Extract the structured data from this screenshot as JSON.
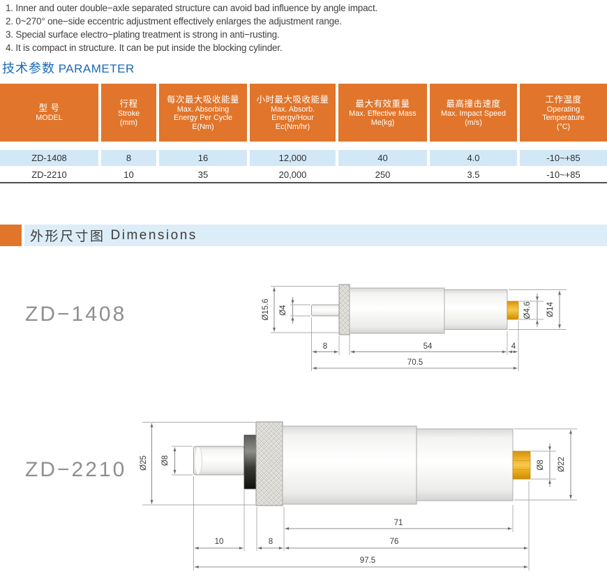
{
  "features": {
    "items": [
      "1.  Inner and outer double−axle separated structure can avoid bad influence by angle impact.",
      "2.  0~270°   one−side eccentric adjustment effectively enlarges the adjustment range.",
      "3.  Special surface electro−plating treatment is strong in anti−rusting.",
      "4.  It is compact in structure.  It can be put inside the blocking cylinder."
    ]
  },
  "parameter_section": {
    "title_cn": "技术参数",
    "title_en": "PARAMETER"
  },
  "table": {
    "headers": [
      {
        "cn": "型 号",
        "en": [
          "MODEL"
        ]
      },
      {
        "cn": "行程",
        "en": [
          "Stroke",
          "(mm)"
        ]
      },
      {
        "cn": "每次最大吸收能量",
        "en": [
          "Max. Absorbing",
          "Energy Per Cycle",
          "E(Nm)"
        ]
      },
      {
        "cn": "小时最大吸收能量",
        "en": [
          "Max. Absorb.",
          "Energy/Hour",
          "Ec(Nm/hr)"
        ]
      },
      {
        "cn": "最大有效重量",
        "en": [
          "Max. Effective Mass",
          "Me(kg)"
        ]
      },
      {
        "cn": "最高撞击速度",
        "en": [
          "Max. Impact Speed",
          "(m/s)"
        ]
      },
      {
        "cn": "工作温度",
        "en": [
          "Operating",
          "Temperature",
          "(°C)"
        ]
      }
    ],
    "rows": [
      {
        "cells": [
          "ZD-1408",
          "8",
          "16",
          "12,000",
          "40",
          "4.0",
          "-10~+85"
        ]
      },
      {
        "cells": [
          "ZD-2210",
          "10",
          "35",
          "20,000",
          "250",
          "3.5",
          "-10~+85"
        ]
      }
    ]
  },
  "dimensions_section": {
    "title_cn": "外形尺寸图",
    "title_en": "Dimensions"
  },
  "drawings": [
    {
      "model": "ZD−1408",
      "dims": {
        "d_outer": "Ø15.6",
        "d_rod": "Ø4",
        "d_tip": "Ø4.6",
        "d_right": "Ø14",
        "rod_len": "8",
        "body_len": "54",
        "tip_len": "4",
        "total_len": "70.5"
      }
    },
    {
      "model": "ZD−2210",
      "dims": {
        "d_outer": "Ø25",
        "d_rod": "Ø8",
        "d_tip": "Ø8",
        "d_right": "Ø22",
        "rod_len": "10",
        "knurl_len": "8",
        "body_len": "71",
        "body_tip_len": "76",
        "total_len": "97.5"
      }
    }
  ],
  "colors": {
    "accent_orange": "#E0752B",
    "table_row_blue": "#D3E8F7",
    "section_bar_blue": "#DCEDF8",
    "heading_blue": "#1A69B5",
    "gold_tip": "#EFAF13",
    "table_bottom_rule": "#4D4D4D"
  }
}
